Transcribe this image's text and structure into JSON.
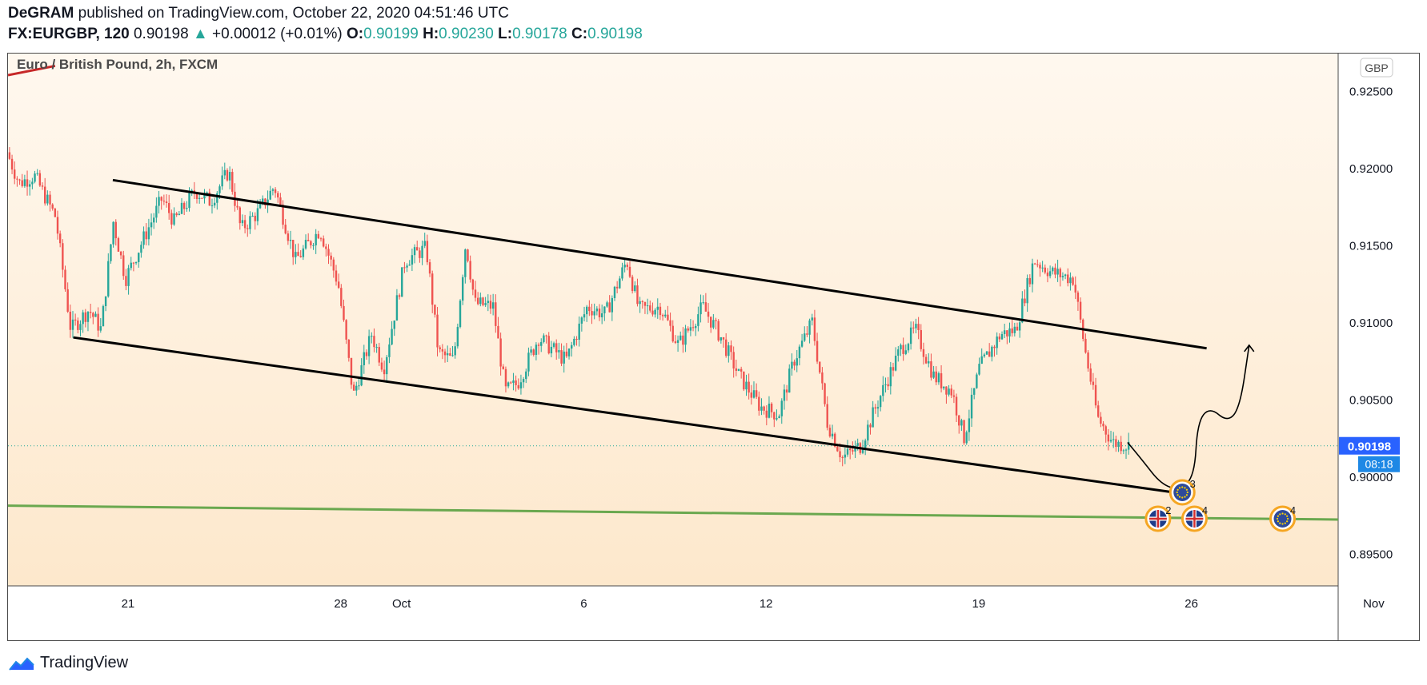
{
  "header": {
    "author": "DeGRAM",
    "published": "published on TradingView.com, October 22, 2020 04:51:46 UTC",
    "symbol": "FX:EURGBP, 120",
    "price": "0.90198",
    "change": "+0.00012 (+0.01%)",
    "o_label": "O:",
    "o_value": "0.90199",
    "h_label": "H:",
    "h_value": "0.90230",
    "l_label": "L:",
    "l_value": "0.90178",
    "c_label": "C:",
    "c_value": "0.90198"
  },
  "footer": {
    "brand": "TradingView"
  },
  "chart_data": {
    "type": "candlestick",
    "title": "Euro / British Pound, 2h, FXCM",
    "currency_badge": "GBP",
    "yaxis": {
      "ticks": [
        0.895,
        0.9,
        0.905,
        0.91,
        0.915,
        0.92,
        0.925
      ],
      "tick_labels": [
        "0.89500",
        "0.90000",
        "0.90500",
        "0.91000",
        "0.91500",
        "0.92000",
        "0.92500"
      ],
      "ylim": [
        0.8929,
        0.9274
      ]
    },
    "xaxis": {
      "ticks": [
        {
          "label": "21",
          "day": 21
        },
        {
          "label": "28",
          "day": 28
        },
        {
          "label": "Oct",
          "day": 30
        },
        {
          "label": "6",
          "day": 36
        },
        {
          "label": "12",
          "day": 42
        },
        {
          "label": "19",
          "day": 49
        },
        {
          "label": "26",
          "day": 56
        },
        {
          "label": "Nov",
          "day": 62
        }
      ],
      "xlim": [
        17.05,
        60.83
      ],
      "day_units": "days from Sep 0, 2020 (Oct 1 = 30, Nov 1 = 61)"
    },
    "last_price": {
      "label": "0.90198",
      "value": 0.90198,
      "countdown": "08:18"
    },
    "price_path": [
      [
        17.1,
        0.921
      ],
      [
        17.5,
        0.919
      ],
      [
        18.0,
        0.9195
      ],
      [
        18.7,
        0.9168
      ],
      [
        19.2,
        0.9095
      ],
      [
        19.8,
        0.9108
      ],
      [
        20.2,
        0.9095
      ],
      [
        20.6,
        0.9165
      ],
      [
        21.0,
        0.9128
      ],
      [
        21.5,
        0.915
      ],
      [
        22.2,
        0.918
      ],
      [
        22.6,
        0.9165
      ],
      [
        23.3,
        0.9185
      ],
      [
        23.8,
        0.9178
      ],
      [
        24.4,
        0.9198
      ],
      [
        24.8,
        0.916
      ],
      [
        25.4,
        0.9172
      ],
      [
        25.9,
        0.9188
      ],
      [
        26.6,
        0.914
      ],
      [
        27.4,
        0.916
      ],
      [
        28.0,
        0.9125
      ],
      [
        28.5,
        0.9052
      ],
      [
        29.1,
        0.9092
      ],
      [
        29.5,
        0.907
      ],
      [
        30.2,
        0.914
      ],
      [
        30.9,
        0.9148
      ],
      [
        31.3,
        0.908
      ],
      [
        31.8,
        0.9075
      ],
      [
        32.2,
        0.9152
      ],
      [
        32.5,
        0.9112
      ],
      [
        33.1,
        0.911
      ],
      [
        33.5,
        0.9055
      ],
      [
        33.9,
        0.906
      ],
      [
        34.6,
        0.909
      ],
      [
        35.5,
        0.9075
      ],
      [
        36.2,
        0.911
      ],
      [
        36.8,
        0.9105
      ],
      [
        37.5,
        0.914
      ],
      [
        37.9,
        0.9108
      ],
      [
        38.6,
        0.911
      ],
      [
        39.2,
        0.9085
      ],
      [
        40.0,
        0.911
      ],
      [
        40.6,
        0.909
      ],
      [
        41.2,
        0.9065
      ],
      [
        41.9,
        0.9045
      ],
      [
        42.5,
        0.904
      ],
      [
        43.0,
        0.9075
      ],
      [
        43.6,
        0.91
      ],
      [
        44.1,
        0.9035
      ],
      [
        44.6,
        0.9012
      ],
      [
        45.2,
        0.902
      ],
      [
        45.8,
        0.905
      ],
      [
        46.5,
        0.9082
      ],
      [
        47.0,
        0.9095
      ],
      [
        47.6,
        0.9065
      ],
      [
        48.2,
        0.9055
      ],
      [
        48.6,
        0.9025
      ],
      [
        49.1,
        0.907
      ],
      [
        49.8,
        0.9092
      ],
      [
        50.3,
        0.9095
      ],
      [
        50.9,
        0.914
      ],
      [
        51.5,
        0.9132
      ],
      [
        52.2,
        0.9128
      ],
      [
        52.6,
        0.908
      ],
      [
        53.0,
        0.9038
      ],
      [
        53.5,
        0.9022
      ],
      [
        54.0,
        0.902
      ]
    ],
    "drawings": [
      {
        "name": "channel-upper-line",
        "color": "#000000",
        "points": [
          [
            20.5,
            0.9192
          ],
          [
            56.5,
            0.9083
          ]
        ]
      },
      {
        "name": "channel-lower-line",
        "color": "#000000",
        "points": [
          [
            19.2,
            0.909
          ],
          [
            56.0,
            0.8988
          ]
        ]
      },
      {
        "name": "support-line",
        "color": "#6aa84f",
        "points": [
          [
            17.05,
            0.8981
          ],
          [
            60.83,
            0.8972
          ]
        ]
      },
      {
        "name": "prior-trend-line",
        "color": "#c62828",
        "points": [
          [
            17.05,
            0.926
          ],
          [
            18.6,
            0.9266
          ]
        ]
      }
    ],
    "projection_path": [
      [
        53.9,
        0.9022
      ],
      [
        54.4,
        0.901
      ],
      [
        55.0,
        0.8995
      ],
      [
        55.6,
        0.8991
      ],
      [
        56.1,
        0.9
      ],
      [
        56.2,
        0.9035
      ],
      [
        56.6,
        0.9045
      ],
      [
        57.2,
        0.9035
      ],
      [
        57.6,
        0.9045
      ],
      [
        57.9,
        0.9085
      ]
    ],
    "events": [
      {
        "flag": "gb",
        "day": 54.9,
        "label": "2",
        "row": 2
      },
      {
        "flag": "gb",
        "day": 56.1,
        "label": "4",
        "row": 2
      },
      {
        "flag": "eu",
        "day": 55.7,
        "label": "3",
        "row": 1
      },
      {
        "flag": "eu",
        "day": 59.0,
        "label": "4",
        "row": 2
      }
    ],
    "colors": {
      "up": "#26a69a",
      "down": "#ef5350",
      "accent": "#2962ff",
      "bg_top": "#fff8ef",
      "bg_bottom": "#fde8cc"
    }
  }
}
